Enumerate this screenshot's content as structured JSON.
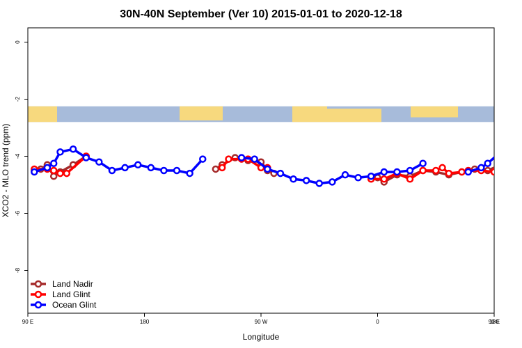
{
  "chart_data": {
    "type": "line",
    "title": "30N-40N September (Ver 10)   2015-01-01 to 2020-12-18",
    "xlabel": "Longitude",
    "ylabel": "XCO2 - MLO trend (ppm)",
    "xlim": [
      90,
      450
    ],
    "ylim": [
      -9.5,
      0.5
    ],
    "x_ticks": [
      {
        "value": 90,
        "label": "90 E"
      },
      {
        "value": 180,
        "label": "180"
      },
      {
        "value": 270,
        "label": "90 W"
      },
      {
        "value": 360,
        "label": "0"
      },
      {
        "value": 450,
        "label": "90 E"
      },
      {
        "value": 540,
        "label": "180"
      }
    ],
    "y_ticks": [
      {
        "value": 0,
        "label": "0"
      },
      {
        "value": -2,
        "label": "-2"
      },
      {
        "value": -4,
        "label": "-4"
      },
      {
        "value": -6,
        "label": "-6"
      },
      {
        "value": -8,
        "label": "-8"
      }
    ],
    "map_band": {
      "ymin": -2.8,
      "ymax": -2.25,
      "land_color": "#f7d97e",
      "ocean_color": "#a7bbda"
    },
    "legend": {
      "position": "bottom-left"
    },
    "series": [
      {
        "name": "Land Nadir",
        "color": "#a52a2a",
        "segments": [
          [
            [
              95,
              -4.5
            ],
            [
              100,
              -4.45
            ],
            [
              105,
              -4.3
            ],
            [
              110,
              -4.7
            ],
            [
              115,
              -4.55
            ],
            [
              125,
              -4.3
            ],
            [
              135,
              -4.0
            ]
          ],
          [
            [
              235,
              -4.45
            ],
            [
              240,
              -4.3
            ],
            [
              250,
              -4.05
            ],
            [
              260,
              -4.15
            ],
            [
              270,
              -4.2
            ],
            [
              275,
              -4.5
            ],
            [
              280,
              -4.6
            ]
          ],
          [
            [
              360,
              -4.75
            ],
            [
              365,
              -4.9
            ],
            [
              375,
              -4.65
            ],
            [
              385,
              -4.7
            ],
            [
              395,
              -4.5
            ],
            [
              405,
              -4.55
            ],
            [
              415,
              -4.65
            ],
            [
              425,
              -4.55
            ],
            [
              435,
              -4.45
            ],
            [
              445,
              -4.5
            ],
            [
              455,
              -4.3
            ],
            [
              460,
              -4.7
            ],
            [
              470,
              -4.4
            ],
            [
              480,
              -4.0
            ]
          ]
        ]
      },
      {
        "name": "Land Glint",
        "color": "#ff0000",
        "segments": [
          [
            [
              95,
              -4.45
            ],
            [
              105,
              -4.45
            ],
            [
              110,
              -4.5
            ],
            [
              115,
              -4.6
            ],
            [
              120,
              -4.6
            ],
            [
              135,
              -4.0
            ]
          ],
          [
            [
              240,
              -4.4
            ],
            [
              245,
              -4.1
            ],
            [
              255,
              -4.1
            ],
            [
              260,
              -4.1
            ],
            [
              270,
              -4.4
            ],
            [
              275,
              -4.4
            ]
          ],
          [
            [
              355,
              -4.8
            ],
            [
              365,
              -4.8
            ],
            [
              375,
              -4.6
            ],
            [
              385,
              -4.8
            ],
            [
              395,
              -4.5
            ],
            [
              405,
              -4.5
            ],
            [
              410,
              -4.4
            ],
            [
              415,
              -4.6
            ],
            [
              425,
              -4.55
            ],
            [
              430,
              -4.5
            ],
            [
              440,
              -4.5
            ],
            [
              450,
              -4.55
            ],
            [
              460,
              -4.6
            ],
            [
              465,
              -4.6
            ],
            [
              475,
              -3.9
            ]
          ]
        ]
      },
      {
        "name": "Ocean Glint",
        "color": "#0000ff",
        "segments": [
          [
            [
              95,
              -4.55
            ],
            [
              105,
              -4.4
            ],
            [
              110,
              -4.25
            ],
            [
              115,
              -3.85
            ],
            [
              125,
              -3.75
            ],
            [
              135,
              -4.05
            ],
            [
              145,
              -4.2
            ],
            [
              155,
              -4.5
            ],
            [
              165,
              -4.4
            ],
            [
              175,
              -4.3
            ],
            [
              185,
              -4.4
            ],
            [
              195,
              -4.5
            ],
            [
              205,
              -4.5
            ],
            [
              215,
              -4.6
            ],
            [
              225,
              -4.1
            ]
          ],
          [
            [
              255,
              -4.05
            ],
            [
              265,
              -4.1
            ],
            [
              275,
              -4.45
            ],
            [
              285,
              -4.6
            ],
            [
              295,
              -4.8
            ],
            [
              305,
              -4.85
            ],
            [
              315,
              -4.95
            ],
            [
              325,
              -4.9
            ],
            [
              335,
              -4.65
            ],
            [
              345,
              -4.75
            ],
            [
              355,
              -4.7
            ],
            [
              365,
              -4.55
            ],
            [
              375,
              -4.55
            ],
            [
              385,
              -4.5
            ],
            [
              395,
              -4.25
            ]
          ],
          [
            [
              430,
              -4.55
            ],
            [
              440,
              -4.4
            ],
            [
              445,
              -4.25
            ],
            [
              455,
              -3.85
            ],
            [
              465,
              -3.8
            ],
            [
              475,
              -4.05
            ],
            [
              485,
              -4.2
            ],
            [
              495,
              -4.5
            ]
          ]
        ]
      }
    ]
  }
}
